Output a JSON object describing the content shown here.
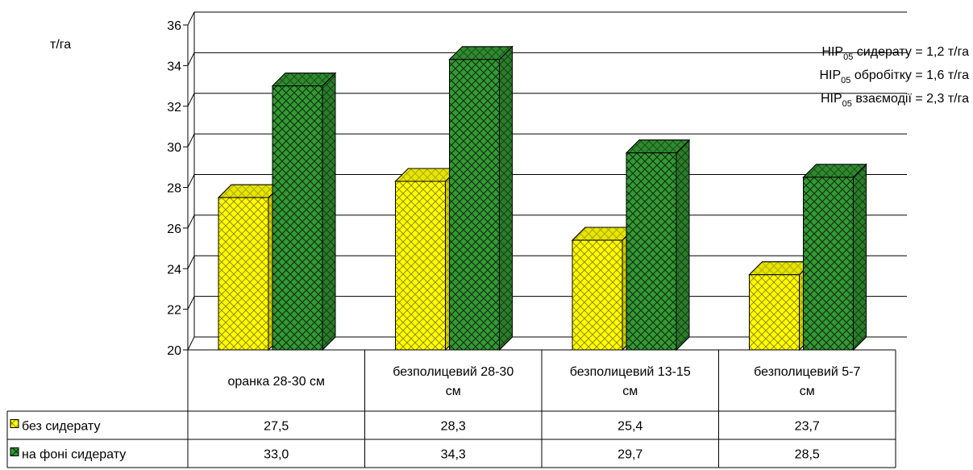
{
  "chart_data": {
    "type": "bar",
    "ylabel": "т/га",
    "ylim": [
      20,
      36
    ],
    "ytick_step": 2,
    "yticks": [
      "20",
      "22",
      "24",
      "26",
      "28",
      "30",
      "32",
      "34",
      "36"
    ],
    "grid": true,
    "categories": [
      [
        "оранка 28-30 см"
      ],
      [
        "безполицевий 28-30",
        "см"
      ],
      [
        "безполицевий 13-15",
        "см"
      ],
      [
        "безполицевий 5-7",
        "см"
      ]
    ],
    "series": [
      {
        "name": "без сидерату",
        "values": [
          27.5,
          28.3,
          25.4,
          23.7
        ],
        "labels": [
          "27,5",
          "28,3",
          "25,4",
          "23,7"
        ],
        "color": "#ffff00",
        "top_color": "#cccc00",
        "side_color": "#999900",
        "pattern_color": "#9a8a00"
      },
      {
        "name": "на фоні сидерату",
        "values": [
          33.0,
          34.3,
          29.7,
          28.5
        ],
        "labels": [
          "33,0",
          "34,3",
          "29,7",
          "28,5"
        ],
        "color": "#339933",
        "top_color": "#2a7a2a",
        "side_color": "#1f5a1f",
        "pattern_color": "#0d2a0d"
      }
    ],
    "annotations": [
      {
        "pre": "НІР",
        "sub": "05",
        "post": " сидерату = 1,2 т/га"
      },
      {
        "pre": "НІР",
        "sub": "05",
        "post": " обробітку = 1,6 т/га"
      },
      {
        "pre": "НІР",
        "sub": "05",
        "post": " взаємодії = 2,3 т/га"
      }
    ]
  }
}
